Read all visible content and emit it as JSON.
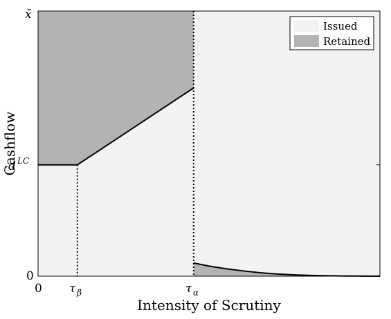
{
  "chart_data": {
    "type": "area",
    "title": "",
    "xlabel": "Intensity of Scrutiny",
    "ylabel": "Cashflow",
    "xlim": [
      0,
      1
    ],
    "ylim": [
      0,
      1
    ],
    "x_tick_labels": [
      "0",
      "τβ",
      "τα"
    ],
    "x_ticks": [
      0,
      0.115,
      0.455
    ],
    "y_tick_labels": [
      "0",
      "dLC",
      "x̄"
    ],
    "y_ticks": [
      0,
      0.42,
      1
    ],
    "legend_position": "top-right",
    "grid": false,
    "series": [
      {
        "name": "Issued",
        "color": "#f2f2f2"
      },
      {
        "name": "Retained",
        "color": "#b3b3b3"
      }
    ],
    "boundary": {
      "x": [
        0,
        0.115,
        0.455
      ],
      "y": [
        0.42,
        0.42,
        0.71
      ]
    },
    "retained_tail": {
      "x": [
        0.455,
        0.5,
        0.55,
        0.6,
        0.65,
        0.7,
        0.75,
        0.8,
        0.85,
        0.9,
        0.95,
        1.0
      ],
      "y": [
        0.05,
        0.038,
        0.028,
        0.02,
        0.013,
        0.008,
        0.005,
        0.003,
        0.0015,
        0.0008,
        0.0003,
        0.0
      ]
    },
    "vertical_dotted_lines_at": [
      0.115,
      0.455
    ]
  },
  "labels": {
    "x_tick_0": "0",
    "x_tick_tau": "τ",
    "x_tick_beta_sub": "β",
    "x_tick_alpha_sub": "α",
    "y_tick_0": "0",
    "y_tick_d": "d",
    "y_tick_lc_sup": "LC",
    "y_tick_xbar": "x̄"
  }
}
